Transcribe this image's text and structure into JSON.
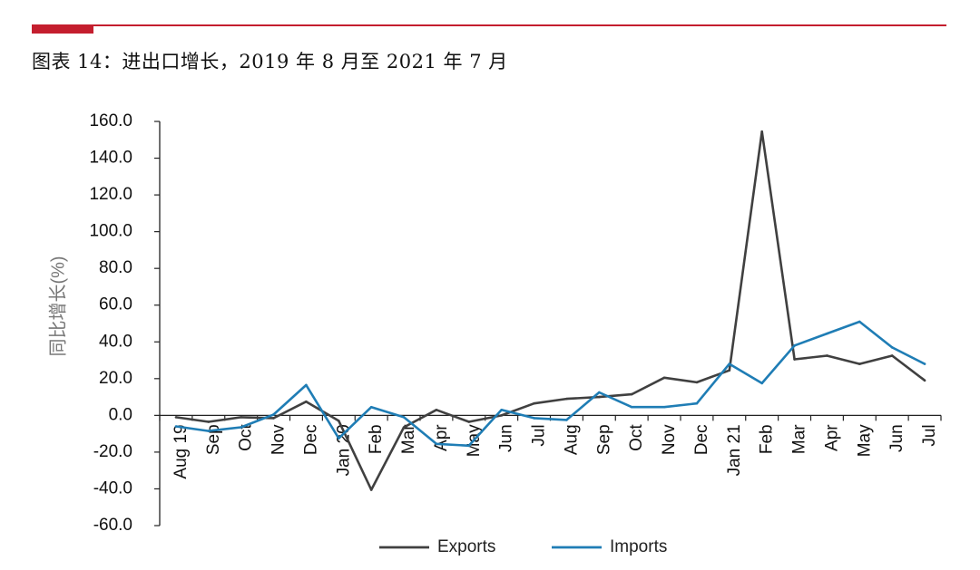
{
  "header": {
    "accent_color": "#c41e2e",
    "title": "图表 14：进出口增长，2019 年 8 月至 2021 年 7 月"
  },
  "chart_data": {
    "type": "line",
    "title": "图表 14：进出口增长，2019 年 8 月至 2021 年 7 月",
    "xlabel": "",
    "ylabel": "同比增长(%)",
    "ylim": [
      -60,
      160
    ],
    "yticks": [
      "160.0",
      "140.0",
      "120.0",
      "100.0",
      "80.0",
      "60.0",
      "40.0",
      "20.0",
      "0.0",
      "-20.0",
      "-40.0",
      "-60.0"
    ],
    "grid": false,
    "legend_position": "bottom-center",
    "categories": [
      "Aug 19",
      "Sep",
      "Oct",
      "Nov",
      "Dec",
      "Jan 20",
      "Feb",
      "Mar",
      "Apr",
      "May",
      "Jun",
      "Jul",
      "Aug",
      "Sep",
      "Oct",
      "Nov",
      "Dec",
      "Jan 21",
      "Feb",
      "Mar",
      "Apr",
      "May",
      "Jun",
      "Jul"
    ],
    "series": [
      {
        "name": "Exports",
        "color": "#404040",
        "values": [
          -1.0,
          -3.5,
          -1.0,
          -1.5,
          7.5,
          -3.0,
          -40.5,
          -6.5,
          3.0,
          -3.5,
          0.0,
          6.5,
          9.0,
          10.0,
          11.5,
          20.5,
          18.0,
          24.5,
          154.5,
          30.5,
          32.5,
          28.0,
          32.5,
          19.0
        ]
      },
      {
        "name": "Imports",
        "color": "#1f7db5",
        "values": [
          -6.0,
          -8.5,
          -6.5,
          0.5,
          16.5,
          -12.5,
          4.5,
          -1.0,
          -15.5,
          -16.5,
          3.0,
          -1.5,
          -2.5,
          12.5,
          4.5,
          4.5,
          6.5,
          28.0,
          17.5,
          38.0,
          44.5,
          51.0,
          37.0,
          28.0
        ]
      }
    ]
  }
}
